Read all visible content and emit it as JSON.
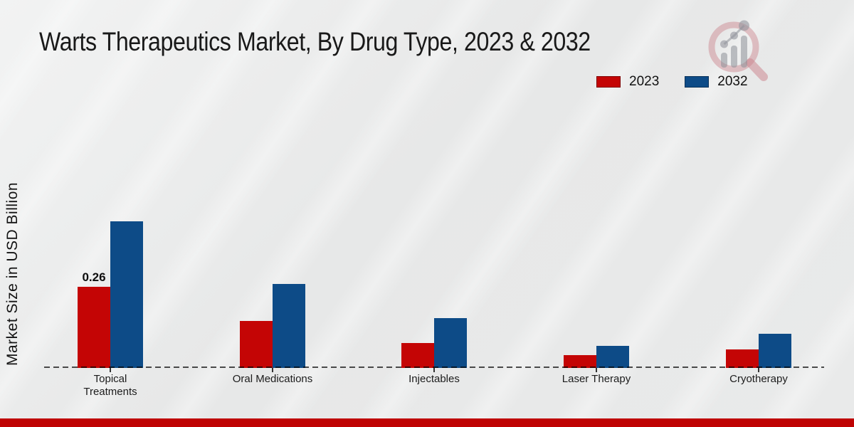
{
  "title": "Warts Therapeutics Market, By Drug Type, 2023 & 2032",
  "y_axis_label": "Market Size in USD Billion",
  "legend": [
    {
      "label": "2023",
      "color": "#c40505"
    },
    {
      "label": "2032",
      "color": "#0d4b87"
    }
  ],
  "footer_accent_color": "#bf0303",
  "logo_icon": "magnifier-bar-chart-logo",
  "chart_data": {
    "type": "bar",
    "title": "Warts Therapeutics Market, By Drug Type, 2023 & 2032",
    "xlabel": "",
    "ylabel": "Market Size in USD Billion",
    "categories": [
      "Topical Treatments",
      "Oral Medications",
      "Injectables",
      "Laser Therapy",
      "Cryotherapy"
    ],
    "series": [
      {
        "name": "2023",
        "color": "#c40505",
        "values": [
          0.26,
          0.15,
          0.08,
          0.04,
          0.06
        ]
      },
      {
        "name": "2032",
        "color": "#0d4b87",
        "values": [
          0.47,
          0.27,
          0.16,
          0.07,
          0.11
        ]
      }
    ],
    "annotations": [
      {
        "category_index": 0,
        "series_index": 0,
        "text": "0.26"
      }
    ],
    "ylim": [
      0,
      0.52
    ],
    "grid": false,
    "baseline_style": "dashed",
    "legend_position": "top-right"
  }
}
